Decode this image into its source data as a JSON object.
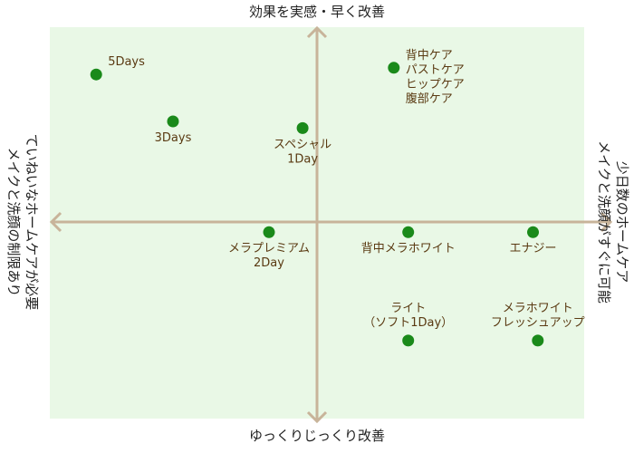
{
  "chart_data": {
    "type": "scatter",
    "xlim": [
      -5,
      5
    ],
    "ylim": [
      -5,
      5
    ],
    "grid": false,
    "axis_labels": {
      "top": "効果を実感・早く改善",
      "bottom": "ゆっくりじっくり改善",
      "left": [
        "ていねいなホームケアが必要",
        "メイクと洗顔の制限あり"
      ],
      "right": [
        "少日数のホームケア",
        "メイクと洗顔がすぐに可能"
      ]
    },
    "points": [
      {
        "name": "5Days",
        "lines": [
          "5Days"
        ],
        "x": -4.6,
        "y": 4.4
      },
      {
        "name": "3Days",
        "lines": [
          "3Days"
        ],
        "x": -3.0,
        "y": 3.0
      },
      {
        "name": "スペシャル1Day",
        "lines": [
          "スペシャル",
          "1Day"
        ],
        "x": -0.3,
        "y": 2.8
      },
      {
        "name": "背中ケア パストケア ヒップケア 腹部ケア",
        "lines": [
          "背中ケア",
          "パストケア",
          "ヒップケア",
          "腹部ケア"
        ],
        "x": 1.6,
        "y": 4.6
      },
      {
        "name": "メラプレミアム2Day",
        "lines": [
          "メラプレミアム",
          "2Day"
        ],
        "x": -1.0,
        "y": -0.3
      },
      {
        "name": "背中メラホワイト",
        "lines": [
          "背中メラホワイト"
        ],
        "x": 1.9,
        "y": -0.3
      },
      {
        "name": "エナジー",
        "lines": [
          "エナジー"
        ],
        "x": 4.5,
        "y": -0.3
      },
      {
        "name": "ライト（ソフト1Day）",
        "lines": [
          "ライト",
          "（ソフト1Day）"
        ],
        "x": 1.9,
        "y": -3.5
      },
      {
        "name": "メラホワイトフレッシュアップ",
        "lines": [
          "メラホワイト",
          "フレッシュアップ"
        ],
        "x": 4.6,
        "y": -3.5
      }
    ]
  },
  "colors": {
    "plot_bg": "#e9f8e6",
    "axis": "#c8b49a",
    "point": "#1a8a1a",
    "point_label": "#5a3a12",
    "axis_title": "#222222"
  }
}
